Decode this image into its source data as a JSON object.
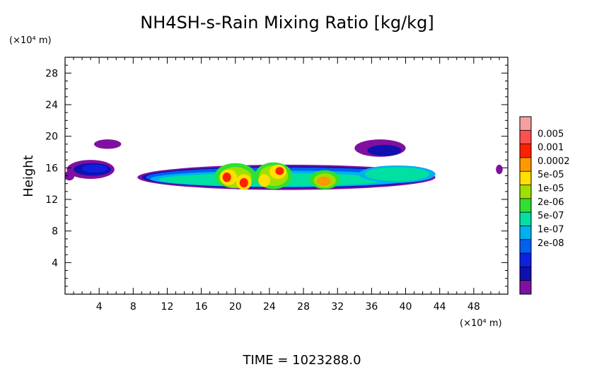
{
  "chart_data": {
    "type": "heatmap",
    "title": "NH4SH-s-Rain Mixing Ratio [kg/kg]",
    "xlabel": "",
    "ylabel": "Height",
    "x_unit_label": "(×10⁴ m)",
    "y_unit_label": "(×10⁴ m)",
    "footer": "TIME = 1023288.0",
    "xlim": [
      0,
      52
    ],
    "ylim": [
      0,
      30
    ],
    "x_ticks": [
      "4",
      "8",
      "12",
      "16",
      "20",
      "24",
      "28",
      "32",
      "36",
      "40",
      "44",
      "48"
    ],
    "x_tick_values": [
      4,
      8,
      12,
      16,
      20,
      24,
      28,
      32,
      36,
      40,
      44,
      48
    ],
    "y_ticks": [
      "4",
      "8",
      "12",
      "16",
      "20",
      "24",
      "28"
    ],
    "y_tick_values": [
      4,
      8,
      12,
      16,
      20,
      24,
      28
    ],
    "colorbar": {
      "labels": [
        "0.005",
        "0.001",
        "0.0002",
        "5e-05",
        "1e-05",
        "2e-06",
        "5e-07",
        "1e-07",
        "2e-08"
      ],
      "colors": [
        "#f4a0a0",
        "#ff5050",
        "#ff2000",
        "#ff9900",
        "#ffe000",
        "#a0e000",
        "#30e030",
        "#00e0a0",
        "#00b0f0",
        "#0060f0",
        "#1020e0",
        "#1010b0",
        "#8010a0"
      ]
    },
    "features": [
      {
        "level": 0,
        "x": 3.0,
        "y": 15.8,
        "rx": 2.8,
        "ry": 1.2
      },
      {
        "level": 0,
        "x": 5.0,
        "y": 19.0,
        "rx": 1.6,
        "ry": 0.6
      },
      {
        "level": 0,
        "x": 0.5,
        "y": 15.0,
        "rx": 0.6,
        "ry": 0.6
      },
      {
        "level": 1,
        "x": 3.2,
        "y": 15.8,
        "rx": 2.2,
        "ry": 0.8
      },
      {
        "level": 2,
        "x": 3.5,
        "y": 15.9,
        "rx": 1.5,
        "ry": 0.5
      },
      {
        "level": 0,
        "x": 26.0,
        "y": 14.8,
        "rx": 17.5,
        "ry": 1.6
      },
      {
        "level": 1,
        "x": 26.0,
        "y": 14.8,
        "rx": 17.0,
        "ry": 1.4
      },
      {
        "level": 3,
        "x": 26.0,
        "y": 14.8,
        "rx": 16.5,
        "ry": 1.25
      },
      {
        "level": 4,
        "x": 25.5,
        "y": 14.6,
        "rx": 15.5,
        "ry": 1.05
      },
      {
        "level": 5,
        "x": 24.5,
        "y": 14.5,
        "rx": 13.5,
        "ry": 0.85
      },
      {
        "level": 0,
        "x": 37.0,
        "y": 18.5,
        "rx": 3.0,
        "ry": 1.1
      },
      {
        "level": 1,
        "x": 37.5,
        "y": 18.2,
        "rx": 2.0,
        "ry": 0.7
      },
      {
        "level": 4,
        "x": 39.0,
        "y": 15.2,
        "rx": 4.5,
        "ry": 1.1
      },
      {
        "level": 5,
        "x": 39.0,
        "y": 15.2,
        "rx": 3.8,
        "ry": 0.9
      },
      {
        "level": 6,
        "x": 20.0,
        "y": 15.0,
        "rx": 2.4,
        "ry": 1.6
      },
      {
        "level": 7,
        "x": 20.0,
        "y": 14.8,
        "rx": 1.9,
        "ry": 1.3
      },
      {
        "level": 8,
        "x": 19.2,
        "y": 14.8,
        "rx": 1.0,
        "ry": 1.0
      },
      {
        "level": 8,
        "x": 21.0,
        "y": 14.2,
        "rx": 0.9,
        "ry": 1.0
      },
      {
        "level": 10,
        "x": 19.0,
        "y": 14.8,
        "rx": 0.5,
        "ry": 0.6
      },
      {
        "level": 10,
        "x": 21.0,
        "y": 14.1,
        "rx": 0.5,
        "ry": 0.6
      },
      {
        "level": 6,
        "x": 24.5,
        "y": 15.0,
        "rx": 2.2,
        "ry": 1.7
      },
      {
        "level": 7,
        "x": 24.5,
        "y": 15.0,
        "rx": 1.7,
        "ry": 1.3
      },
      {
        "level": 8,
        "x": 25.0,
        "y": 15.5,
        "rx": 1.0,
        "ry": 0.9
      },
      {
        "level": 8,
        "x": 23.4,
        "y": 14.4,
        "rx": 0.7,
        "ry": 0.8
      },
      {
        "level": 10,
        "x": 25.2,
        "y": 15.6,
        "rx": 0.5,
        "ry": 0.5
      },
      {
        "level": 6,
        "x": 30.5,
        "y": 14.5,
        "rx": 1.8,
        "ry": 1.2
      },
      {
        "level": 7,
        "x": 30.5,
        "y": 14.4,
        "rx": 1.3,
        "ry": 0.9
      },
      {
        "level": 9,
        "x": 30.4,
        "y": 14.3,
        "rx": 0.8,
        "ry": 0.6
      },
      {
        "level": 0,
        "x": 51.0,
        "y": 15.8,
        "rx": 0.4,
        "ry": 0.6
      }
    ]
  }
}
